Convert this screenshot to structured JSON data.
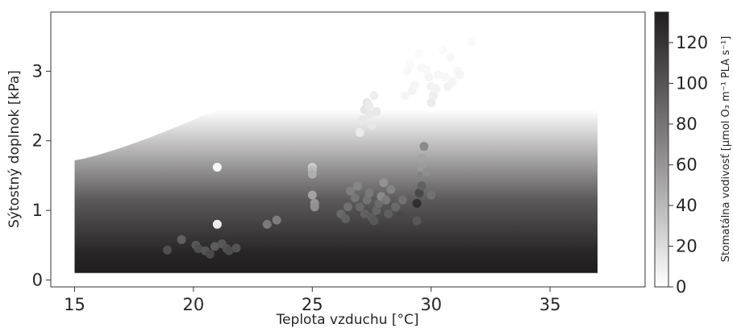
{
  "chart_data": {
    "type": "scatter",
    "title": "",
    "xlabel": "Teplota vzduchu [°C]",
    "ylabel": "Sýtostný doplnok [kPa]",
    "xlim": [
      14,
      39
    ],
    "ylim": [
      -0.1,
      3.85
    ],
    "x_ticks": [
      15,
      20,
      25,
      30,
      35
    ],
    "y_ticks": [
      0,
      1,
      2,
      3
    ],
    "grid": false,
    "colorbar": {
      "label": "Stomatálna vodivosť [μmol O₃ m⁻¹ PLA s⁻¹]",
      "range": [
        0,
        135
      ],
      "ticks": [
        0,
        20,
        40,
        60,
        80,
        100,
        120
      ],
      "colormap": "white-to-black"
    },
    "background_surface": {
      "x_range": [
        15,
        37
      ],
      "y_range": [
        0.1,
        2.45
      ],
      "description_color": "gradient from dark (~130) at low y to white (~0) at top; top edge curves upward from y≈1.72 at x=15 to y≈2.45 at x≈21"
    },
    "points": [
      {
        "x": 18.9,
        "y": 0.43,
        "v": 105
      },
      {
        "x": 19.5,
        "y": 0.58,
        "v": 95
      },
      {
        "x": 20.1,
        "y": 0.5,
        "v": 100
      },
      {
        "x": 20.2,
        "y": 0.45,
        "v": 105
      },
      {
        "x": 20.5,
        "y": 0.42,
        "v": 102
      },
      {
        "x": 20.7,
        "y": 0.37,
        "v": 108
      },
      {
        "x": 20.9,
        "y": 0.48,
        "v": 98
      },
      {
        "x": 21.2,
        "y": 0.52,
        "v": 100
      },
      {
        "x": 21.4,
        "y": 0.45,
        "v": 104
      },
      {
        "x": 21.5,
        "y": 0.42,
        "v": 106
      },
      {
        "x": 21.8,
        "y": 0.46,
        "v": 103
      },
      {
        "x": 21.0,
        "y": 0.8,
        "v": 10
      },
      {
        "x": 21.0,
        "y": 1.62,
        "v": 5
      },
      {
        "x": 23.1,
        "y": 0.8,
        "v": 80
      },
      {
        "x": 23.5,
        "y": 0.86,
        "v": 78
      },
      {
        "x": 25.0,
        "y": 1.62,
        "v": 30
      },
      {
        "x": 25.0,
        "y": 1.58,
        "v": 40
      },
      {
        "x": 25.0,
        "y": 1.52,
        "v": 48
      },
      {
        "x": 25.0,
        "y": 1.22,
        "v": 55
      },
      {
        "x": 25.1,
        "y": 1.1,
        "v": 62
      },
      {
        "x": 25.1,
        "y": 1.05,
        "v": 66
      },
      {
        "x": 26.2,
        "y": 0.95,
        "v": 90
      },
      {
        "x": 26.4,
        "y": 0.88,
        "v": 94
      },
      {
        "x": 26.5,
        "y": 1.05,
        "v": 86
      },
      {
        "x": 26.6,
        "y": 1.28,
        "v": 76
      },
      {
        "x": 26.8,
        "y": 1.18,
        "v": 82
      },
      {
        "x": 26.9,
        "y": 1.35,
        "v": 72
      },
      {
        "x": 27.0,
        "y": 1.05,
        "v": 90
      },
      {
        "x": 27.2,
        "y": 0.95,
        "v": 95
      },
      {
        "x": 27.3,
        "y": 1.15,
        "v": 84
      },
      {
        "x": 27.4,
        "y": 1.25,
        "v": 80
      },
      {
        "x": 27.5,
        "y": 0.9,
        "v": 98
      },
      {
        "x": 27.6,
        "y": 0.85,
        "v": 100
      },
      {
        "x": 27.7,
        "y": 1.0,
        "v": 92
      },
      {
        "x": 27.8,
        "y": 1.1,
        "v": 88
      },
      {
        "x": 27.9,
        "y": 1.2,
        "v": 70
      },
      {
        "x": 28.0,
        "y": 1.4,
        "v": 65
      },
      {
        "x": 28.1,
        "y": 1.15,
        "v": 80
      },
      {
        "x": 28.2,
        "y": 0.95,
        "v": 96
      },
      {
        "x": 28.3,
        "y": 1.3,
        "v": 74
      },
      {
        "x": 28.5,
        "y": 1.05,
        "v": 90
      },
      {
        "x": 28.7,
        "y": 0.92,
        "v": 110
      },
      {
        "x": 28.8,
        "y": 1.15,
        "v": 85
      },
      {
        "x": 29.4,
        "y": 1.1,
        "v": 125
      },
      {
        "x": 29.5,
        "y": 1.25,
        "v": 110
      },
      {
        "x": 29.6,
        "y": 1.35,
        "v": 95
      },
      {
        "x": 29.6,
        "y": 1.5,
        "v": 75
      },
      {
        "x": 29.6,
        "y": 1.62,
        "v": 60
      },
      {
        "x": 29.6,
        "y": 1.75,
        "v": 55
      },
      {
        "x": 29.7,
        "y": 1.92,
        "v": 70
      },
      {
        "x": 29.8,
        "y": 1.55,
        "v": 68
      },
      {
        "x": 30.0,
        "y": 1.22,
        "v": 85
      },
      {
        "x": 29.4,
        "y": 0.85,
        "v": 100
      },
      {
        "x": 27.0,
        "y": 2.12,
        "v": 12
      },
      {
        "x": 27.1,
        "y": 2.3,
        "v": 14
      },
      {
        "x": 27.2,
        "y": 2.45,
        "v": 16
      },
      {
        "x": 27.3,
        "y": 2.55,
        "v": 15
      },
      {
        "x": 27.4,
        "y": 2.38,
        "v": 13
      },
      {
        "x": 27.5,
        "y": 2.22,
        "v": 15
      },
      {
        "x": 27.6,
        "y": 2.65,
        "v": 10
      },
      {
        "x": 27.7,
        "y": 2.42,
        "v": 14
      },
      {
        "x": 27.4,
        "y": 2.5,
        "v": 12
      },
      {
        "x": 28.9,
        "y": 2.65,
        "v": 6
      },
      {
        "x": 29.0,
        "y": 3.0,
        "v": 4
      },
      {
        "x": 29.1,
        "y": 3.1,
        "v": 3
      },
      {
        "x": 29.3,
        "y": 2.8,
        "v": 6
      },
      {
        "x": 29.5,
        "y": 3.25,
        "v": 3
      },
      {
        "x": 29.6,
        "y": 3.05,
        "v": 5
      },
      {
        "x": 29.8,
        "y": 3.02,
        "v": 4
      },
      {
        "x": 29.9,
        "y": 2.92,
        "v": 6
      },
      {
        "x": 30.0,
        "y": 2.78,
        "v": 8
      },
      {
        "x": 30.1,
        "y": 2.65,
        "v": 10
      },
      {
        "x": 30.0,
        "y": 2.55,
        "v": 12
      },
      {
        "x": 30.2,
        "y": 2.75,
        "v": 7
      },
      {
        "x": 30.3,
        "y": 2.95,
        "v": 5
      },
      {
        "x": 30.5,
        "y": 3.3,
        "v": 3
      },
      {
        "x": 30.6,
        "y": 2.92,
        "v": 5
      },
      {
        "x": 30.7,
        "y": 2.78,
        "v": 7
      },
      {
        "x": 30.8,
        "y": 3.2,
        "v": 4
      },
      {
        "x": 30.9,
        "y": 2.85,
        "v": 6
      },
      {
        "x": 31.1,
        "y": 3.0,
        "v": 5
      },
      {
        "x": 31.2,
        "y": 2.95,
        "v": 6
      },
      {
        "x": 31.7,
        "y": 3.42,
        "v": 3
      },
      {
        "x": 29.2,
        "y": 2.72,
        "v": 7
      }
    ]
  }
}
